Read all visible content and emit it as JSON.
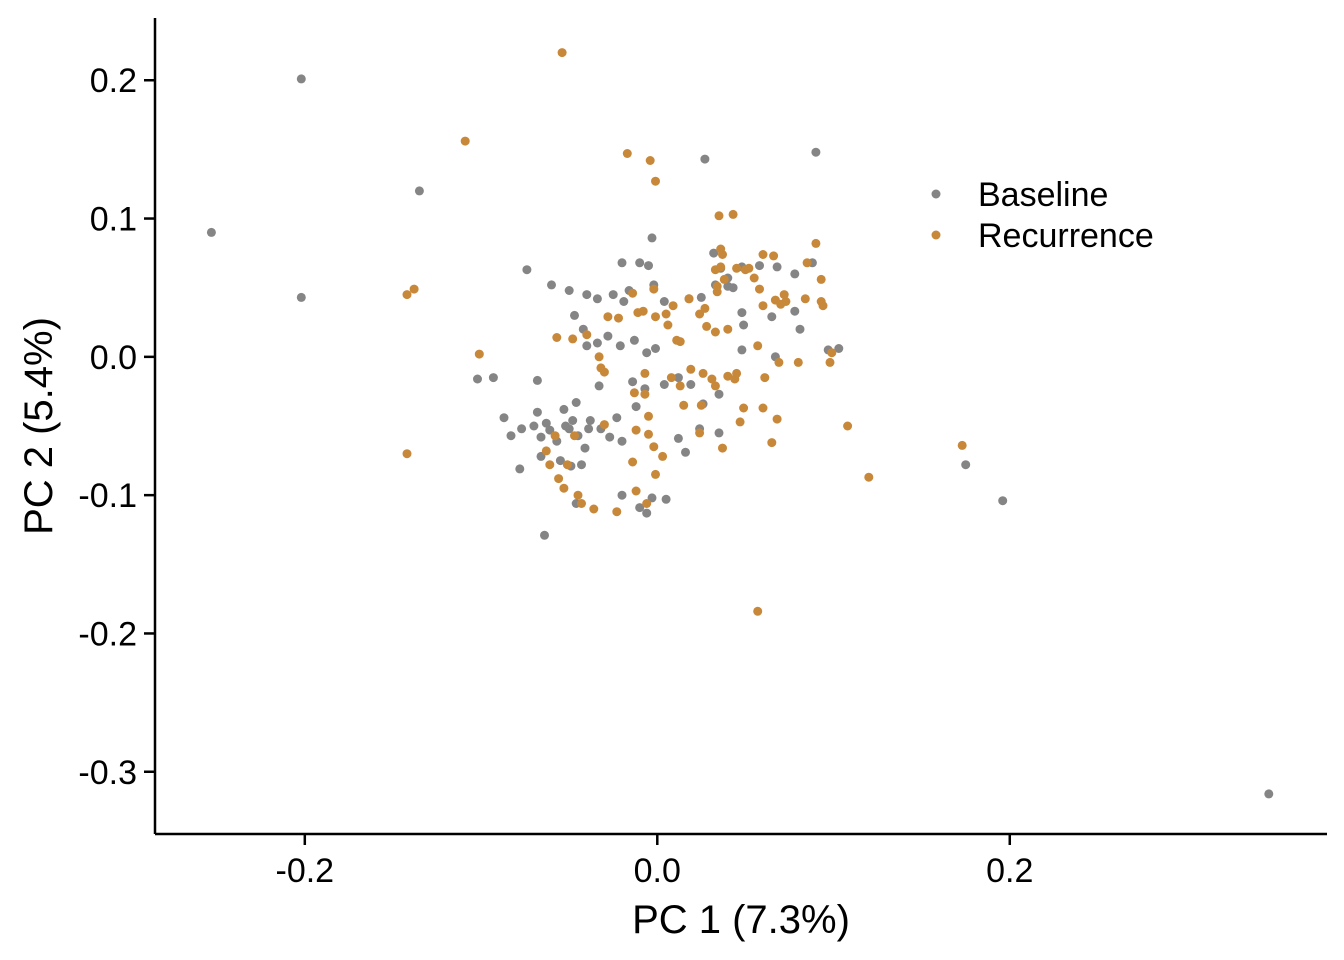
{
  "chart_data": {
    "type": "scatter",
    "title": "",
    "xlabel": "PC 1 (7.3%)",
    "ylabel": "PC 2 (5.4%)",
    "xlim": [
      -0.285,
      0.38
    ],
    "ylim": [
      -0.345,
      0.245
    ],
    "xticks": [
      -0.2,
      0.0,
      0.2
    ],
    "xtick_labels": [
      "-0.2",
      "0.0",
      "0.2"
    ],
    "yticks": [
      0.2,
      0.1,
      0.0,
      -0.1,
      -0.2,
      -0.3
    ],
    "ytick_labels": [
      "0.2",
      "0.1",
      "0.0",
      "-0.1",
      "-0.2",
      "-0.3"
    ],
    "grid": false,
    "legend_position": "top-right",
    "series": [
      {
        "name": "Baseline",
        "color": "#858585",
        "points": [
          [
            -0.202,
            0.201
          ],
          [
            -0.253,
            0.09
          ],
          [
            -0.202,
            0.043
          ],
          [
            -0.135,
            0.12
          ],
          [
            0.027,
            0.143
          ],
          [
            0.09,
            0.148
          ],
          [
            0.196,
            -0.104
          ],
          [
            0.175,
            -0.078
          ],
          [
            0.347,
            -0.316
          ],
          [
            -0.074,
            0.063
          ],
          [
            -0.06,
            0.052
          ],
          [
            -0.068,
            -0.017
          ],
          [
            -0.093,
            -0.015
          ],
          [
            -0.102,
            -0.016
          ],
          [
            -0.087,
            -0.044
          ],
          [
            -0.083,
            -0.057
          ],
          [
            -0.077,
            -0.052
          ],
          [
            -0.07,
            -0.05
          ],
          [
            -0.068,
            -0.04
          ],
          [
            -0.066,
            -0.058
          ],
          [
            -0.063,
            -0.048
          ],
          [
            -0.061,
            -0.053
          ],
          [
            -0.057,
            -0.061
          ],
          [
            -0.053,
            -0.038
          ],
          [
            -0.05,
            -0.052
          ],
          [
            -0.048,
            -0.046
          ],
          [
            -0.046,
            -0.033
          ],
          [
            -0.045,
            -0.057
          ],
          [
            -0.043,
            -0.078
          ],
          [
            -0.049,
            -0.079
          ],
          [
            -0.055,
            -0.075
          ],
          [
            -0.066,
            -0.072
          ],
          [
            -0.078,
            -0.081
          ],
          [
            -0.064,
            -0.129
          ],
          [
            -0.046,
            -0.106
          ],
          [
            -0.039,
            -0.052
          ],
          [
            -0.032,
            -0.052
          ],
          [
            -0.041,
            -0.066
          ],
          [
            -0.052,
            -0.05
          ],
          [
            -0.02,
            -0.061
          ],
          [
            -0.027,
            -0.058
          ],
          [
            -0.02,
            -0.1
          ],
          [
            -0.01,
            -0.109
          ],
          [
            -0.006,
            -0.113
          ],
          [
            -0.003,
            -0.102
          ],
          [
            0.005,
            -0.103
          ],
          [
            0.012,
            -0.059
          ],
          [
            0.016,
            -0.069
          ],
          [
            0.024,
            -0.052
          ],
          [
            0.035,
            -0.055
          ],
          [
            -0.047,
            0.03
          ],
          [
            -0.042,
            0.02
          ],
          [
            -0.05,
            0.048
          ],
          [
            -0.04,
            0.045
          ],
          [
            -0.034,
            0.042
          ],
          [
            -0.025,
            0.045
          ],
          [
            -0.016,
            0.048
          ],
          [
            -0.02,
            0.068
          ],
          [
            -0.01,
            0.068
          ],
          [
            -0.005,
            0.066
          ],
          [
            -0.002,
            0.052
          ],
          [
            -0.003,
            0.086
          ],
          [
            0.004,
            0.04
          ],
          [
            0.018,
            0.042
          ],
          [
            0.025,
            0.043
          ],
          [
            0.033,
            0.052
          ],
          [
            0.036,
            0.064
          ],
          [
            0.04,
            0.057
          ],
          [
            0.048,
            0.065
          ],
          [
            0.058,
            0.066
          ],
          [
            0.068,
            0.065
          ],
          [
            0.078,
            0.06
          ],
          [
            0.078,
            0.033
          ],
          [
            0.088,
            0.068
          ],
          [
            0.097,
            0.005
          ],
          [
            0.103,
            0.006
          ],
          [
            -0.04,
            0.008
          ],
          [
            -0.034,
            0.01
          ],
          [
            -0.028,
            0.015
          ],
          [
            -0.021,
            0.008
          ],
          [
            -0.013,
            0.012
          ],
          [
            -0.006,
            0.003
          ],
          [
            -0.001,
            0.006
          ],
          [
            -0.014,
            -0.018
          ],
          [
            -0.007,
            -0.023
          ],
          [
            0.004,
            -0.02
          ],
          [
            0.012,
            -0.015
          ],
          [
            0.019,
            -0.02
          ],
          [
            0.026,
            -0.034
          ],
          [
            0.035,
            -0.027
          ],
          [
            0.048,
            0.032
          ],
          [
            0.049,
            0.023
          ],
          [
            0.048,
            0.005
          ],
          [
            0.065,
            0.029
          ],
          [
            0.081,
            0.02
          ],
          [
            0.067,
            0.0
          ],
          [
            -0.033,
            -0.021
          ],
          [
            -0.038,
            -0.046
          ],
          [
            -0.012,
            -0.036
          ],
          [
            -0.023,
            -0.044
          ],
          [
            0.032,
            0.075
          ],
          [
            0.04,
            0.051
          ],
          [
            0.043,
            0.05
          ],
          [
            -0.019,
            0.04
          ]
        ]
      },
      {
        "name": "Recurrence",
        "color": "#c8883a",
        "points": [
          [
            -0.054,
            0.22
          ],
          [
            -0.109,
            0.156
          ],
          [
            -0.017,
            0.147
          ],
          [
            -0.004,
            0.142
          ],
          [
            -0.001,
            0.127
          ],
          [
            0.035,
            0.102
          ],
          [
            0.043,
            0.103
          ],
          [
            -0.142,
            0.045
          ],
          [
            -0.138,
            0.049
          ],
          [
            -0.101,
            0.002
          ],
          [
            -0.142,
            -0.07
          ],
          [
            0.057,
            -0.184
          ],
          [
            0.108,
            -0.05
          ],
          [
            0.12,
            -0.087
          ],
          [
            0.173,
            -0.064
          ],
          [
            0.09,
            0.082
          ],
          [
            0.093,
            0.056
          ],
          [
            0.093,
            0.04
          ],
          [
            0.094,
            0.037
          ],
          [
            0.099,
            0.003
          ],
          [
            0.098,
            -0.004
          ],
          [
            0.084,
            0.042
          ],
          [
            0.085,
            0.068
          ],
          [
            0.08,
            -0.004
          ],
          [
            0.066,
            0.073
          ],
          [
            0.06,
            0.074
          ],
          [
            0.052,
            0.064
          ],
          [
            0.045,
            0.064
          ],
          [
            0.037,
            0.074
          ],
          [
            0.036,
            0.065
          ],
          [
            0.033,
            0.063
          ],
          [
            0.036,
            0.078
          ],
          [
            0.038,
            0.056
          ],
          [
            0.05,
            0.063
          ],
          [
            0.055,
            0.057
          ],
          [
            0.058,
            0.049
          ],
          [
            0.067,
            0.041
          ],
          [
            0.07,
            0.038
          ],
          [
            0.072,
            0.045
          ],
          [
            0.073,
            0.04
          ],
          [
            0.06,
            0.037
          ],
          [
            0.034,
            0.047
          ],
          [
            0.034,
            0.051
          ],
          [
            0.027,
            0.035
          ],
          [
            0.033,
            0.018
          ],
          [
            0.024,
            0.031
          ],
          [
            0.013,
            0.011
          ],
          [
            0.006,
            0.023
          ],
          [
            -0.001,
            0.029
          ],
          [
            -0.002,
            0.049
          ],
          [
            0.005,
            0.031
          ],
          [
            0.009,
            0.037
          ],
          [
            0.018,
            0.042
          ],
          [
            0.028,
            0.022
          ],
          [
            0.04,
            0.02
          ],
          [
            0.057,
            0.008
          ],
          [
            -0.008,
            0.033
          ],
          [
            -0.011,
            0.032
          ],
          [
            -0.014,
            0.046
          ],
          [
            -0.028,
            0.029
          ],
          [
            -0.033,
            0.0
          ],
          [
            -0.032,
            -0.008
          ],
          [
            -0.03,
            -0.011
          ],
          [
            -0.022,
            0.028
          ],
          [
            -0.04,
            0.016
          ],
          [
            -0.057,
            0.014
          ],
          [
            -0.048,
            0.013
          ],
          [
            -0.013,
            -0.026
          ],
          [
            -0.007,
            -0.012
          ],
          [
            -0.007,
            -0.027
          ],
          [
            -0.005,
            -0.043
          ],
          [
            0.008,
            -0.015
          ],
          [
            0.013,
            -0.021
          ],
          [
            0.015,
            -0.035
          ],
          [
            0.025,
            -0.035
          ],
          [
            0.026,
            -0.012
          ],
          [
            0.031,
            -0.016
          ],
          [
            0.044,
            -0.016
          ],
          [
            0.045,
            -0.012
          ],
          [
            0.049,
            -0.037
          ],
          [
            0.047,
            -0.047
          ],
          [
            0.033,
            -0.021
          ],
          [
            0.04,
            -0.014
          ],
          [
            0.024,
            -0.055
          ],
          [
            0.037,
            -0.066
          ],
          [
            0.065,
            -0.062
          ],
          [
            0.068,
            -0.045
          ],
          [
            0.06,
            -0.037
          ],
          [
            -0.058,
            -0.057
          ],
          [
            -0.053,
            -0.095
          ],
          [
            -0.045,
            -0.1
          ],
          [
            -0.043,
            -0.106
          ],
          [
            -0.036,
            -0.11
          ],
          [
            -0.023,
            -0.112
          ],
          [
            -0.014,
            -0.076
          ],
          [
            -0.012,
            -0.097
          ],
          [
            -0.006,
            -0.106
          ],
          [
            -0.001,
            -0.085
          ],
          [
            -0.002,
            -0.065
          ],
          [
            0.003,
            -0.072
          ],
          [
            -0.012,
            -0.053
          ],
          [
            -0.005,
            -0.056
          ],
          [
            -0.061,
            -0.078
          ],
          [
            -0.056,
            -0.088
          ],
          [
            -0.051,
            -0.078
          ],
          [
            -0.063,
            -0.068
          ],
          [
            -0.03,
            -0.049
          ],
          [
            -0.047,
            -0.057
          ],
          [
            0.011,
            0.012
          ],
          [
            0.019,
            -0.009
          ],
          [
            0.061,
            -0.015
          ],
          [
            0.069,
            -0.004
          ]
        ]
      }
    ]
  }
}
